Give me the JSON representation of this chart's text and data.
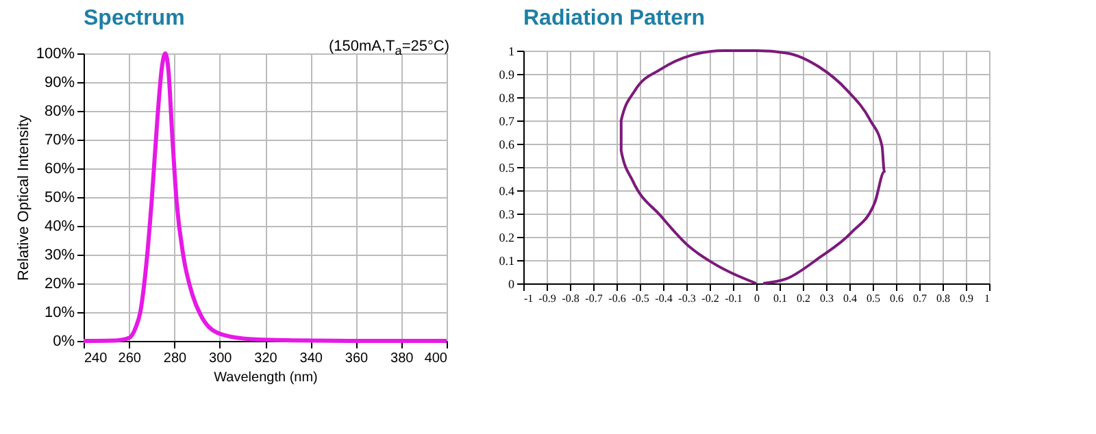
{
  "chart_data": [
    {
      "type": "line",
      "title": "Spectrum",
      "xlabel": "Wavelength (nm)",
      "ylabel": "Relative Optical Intensity",
      "annotations": [
        "(150mA,T$_{a}$=25°C)"
      ],
      "series": [
        {
          "color": "#e619e6",
          "x": [
            240,
            255,
            260,
            263,
            265,
            268,
            270,
            272.6,
            274.5,
            276,
            277.3,
            279.2,
            281,
            284,
            288,
            291.6,
            295.4,
            303,
            314,
            333,
            360,
            400
          ],
          "values": [
            0,
            0.2,
            1,
            4.7,
            10,
            29.5,
            48.5,
            78,
            95,
            100,
            95,
            70,
            48.5,
            29.5,
            16,
            9,
            4.7,
            1.8,
            0.6,
            0.2,
            0,
            0
          ]
        }
      ],
      "xlim": [
        240,
        400
      ],
      "xticks": [
        240,
        260,
        280,
        300,
        320,
        340,
        360,
        380,
        400
      ],
      "ylim": [
        0,
        100
      ],
      "yticks": [
        {
          "value": 0,
          "label": "0%"
        },
        {
          "value": 10,
          "label": "10%"
        },
        {
          "value": 20,
          "label": "20%"
        },
        {
          "value": 30,
          "label": "30%"
        },
        {
          "value": 40,
          "label": "40%"
        },
        {
          "value": 50,
          "label": "50%"
        },
        {
          "value": 60,
          "label": "60%"
        },
        {
          "value": 70,
          "label": "70%"
        },
        {
          "value": 80,
          "label": "80%"
        },
        {
          "value": 90,
          "label": "90%"
        },
        {
          "value": 100,
          "label": "100%"
        }
      ],
      "grid": true
    },
    {
      "type": "line",
      "title": "Radiation Pattern",
      "series": [
        {
          "color": "#7b1a7b",
          "x": [
            0,
            -0.19,
            -0.29,
            -0.41,
            -0.53,
            -0.58,
            -0.58,
            -0.52,
            -0.41,
            -0.28,
            -0.14,
            0,
            0.13,
            0.27,
            0.39,
            0.49,
            0.54,
            0.55,
            0.51,
            0.41,
            0.27,
            0.13,
            0.03
          ],
          "values": [
            0,
            0.09,
            0.16,
            0.29,
            0.44,
            0.57,
            0.7,
            0.83,
            0.92,
            0.98,
            1,
            1,
            0.99,
            0.93,
            0.83,
            0.7,
            0.59,
            0.48,
            0.35,
            0.22,
            0.11,
            0.02,
            0
          ]
        }
      ],
      "xlim": [
        -1,
        1
      ],
      "xticks": [
        -1,
        -0.9,
        -0.8,
        -0.7,
        -0.6,
        -0.5,
        -0.4,
        -0.3,
        -0.2,
        -0.1,
        0,
        0.1,
        0.2,
        0.3,
        0.4,
        0.5,
        0.6,
        0.7,
        0.8,
        0.9,
        1
      ],
      "ylim": [
        0,
        1
      ],
      "yticks": [
        0,
        0.1,
        0.2,
        0.3,
        0.4,
        0.5,
        0.6,
        0.7,
        0.8,
        0.9,
        1
      ],
      "grid": true
    }
  ]
}
